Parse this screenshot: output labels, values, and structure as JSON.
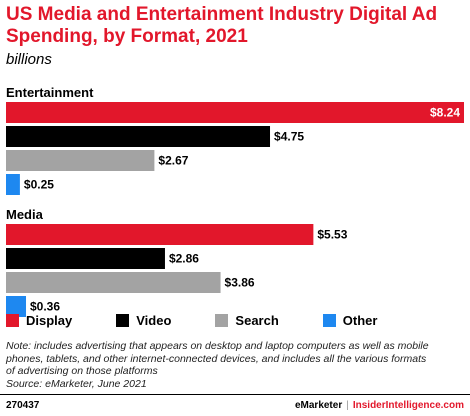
{
  "title": "US Media and Entertainment Industry Digital Ad Spending, by Format, 2021",
  "subtitle": "billions",
  "colors": {
    "Display": "#e2172b",
    "Video": "#000000",
    "Search": "#a3a3a3",
    "Other": "#1e88f0"
  },
  "chart_data": {
    "type": "bar",
    "orientation": "horizontal",
    "title": "US Media and Entertainment Industry Digital Ad Spending, by Format, 2021",
    "subtitle": "billions",
    "categories": [
      "Entertainment",
      "Media"
    ],
    "series": [
      {
        "name": "Display",
        "values": [
          8.24,
          5.53
        ],
        "labels": [
          "$8.24",
          "$5.53"
        ]
      },
      {
        "name": "Video",
        "values": [
          4.75,
          2.86
        ],
        "labels": [
          "$4.75",
          "$2.86"
        ]
      },
      {
        "name": "Search",
        "values": [
          2.67,
          3.86
        ],
        "labels": [
          "$2.67",
          "$3.86"
        ]
      },
      {
        "name": "Other",
        "values": [
          0.25,
          0.36
        ],
        "labels": [
          "$0.25",
          "$0.36"
        ]
      }
    ],
    "xlim": [
      0,
      8.24
    ],
    "grid": false,
    "legend_position": "bottom"
  },
  "legend": [
    {
      "label": "Display",
      "color": "#e2172b"
    },
    {
      "label": "Video",
      "color": "#000000"
    },
    {
      "label": "Search",
      "color": "#a3a3a3"
    },
    {
      "label": "Other",
      "color": "#1e88f0"
    }
  ],
  "note": {
    "line1": "Note: includes advertising that appears on desktop and laptop computers as well as mobile",
    "line2": "phones, tablets, and other internet-connected devices, and includes all the various formats",
    "line3": "of advertising on those platforms",
    "source": "Source: eMarketer, June 2021"
  },
  "footer": {
    "id": "270437",
    "brand1": "eMarketer",
    "separator": "|",
    "brand2": "InsiderIntelligence.com"
  }
}
